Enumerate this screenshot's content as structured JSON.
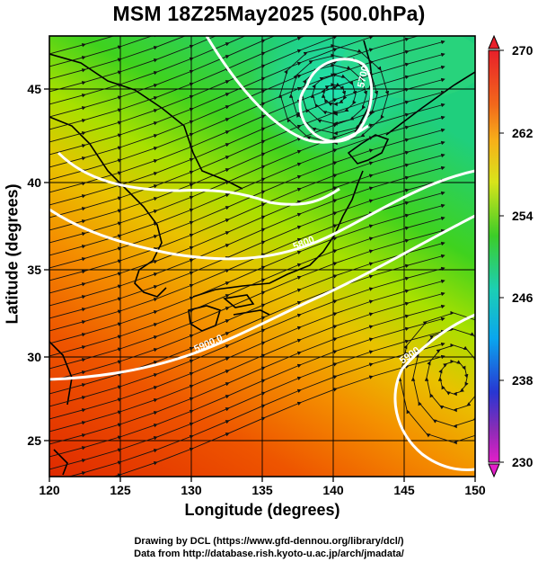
{
  "title": "MSM 18Z25May2025 (500.0hPa)",
  "axes": {
    "xlabel": "Longitude (degrees)",
    "ylabel": "Latitude  (degrees)",
    "x_ticks": [
      "120",
      "125",
      "130",
      "135",
      "140",
      "145",
      "150"
    ],
    "y_ticks": [
      "25",
      "30",
      "35",
      "40",
      "45"
    ]
  },
  "colorbar": {
    "labels": [
      "270",
      "262",
      "254",
      "246",
      "238",
      "230"
    ]
  },
  "contours": [
    {
      "label": "5900.0"
    },
    {
      "label": "5800"
    },
    {
      "label": "5700"
    },
    {
      "label": "5900"
    }
  ],
  "credits": [
    "Drawing by DCL (https://www.gfd-dennou.org/library/dcl/)",
    "Data from http://database.rish.kyoto-u.ac.jp/arch/jmadata/"
  ],
  "map_data": {
    "type": "streamlines over temperature field with geopotential height contours",
    "x_range": [
      120,
      150
    ],
    "y_range": [
      22.5,
      47.5
    ],
    "colorbar_range": [
      230,
      270
    ]
  }
}
